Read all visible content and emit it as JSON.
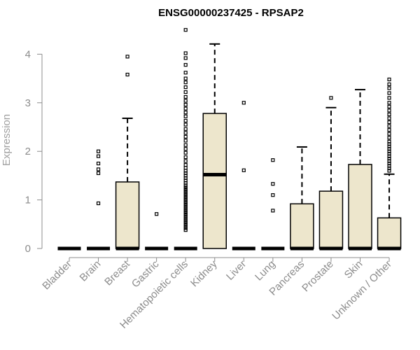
{
  "chart_data": {
    "type": "box",
    "title": "ENSG00000237425 - RPSAP2",
    "xlabel": "",
    "ylabel": "Expression",
    "ylim": [
      0,
      4.6
    ],
    "yticks": [
      "0",
      "1",
      "2",
      "3",
      "4"
    ],
    "box_fill": "#ede6cc",
    "outline_color": "#000000",
    "axis_color": "#8c8c8c",
    "grid": false,
    "categories": [
      "Bladder",
      "Brain",
      "Breast",
      "Gastric",
      "Hematopoietic cells",
      "Kidney",
      "Liver",
      "Lung",
      "Pancreas",
      "Prostate",
      "Skin",
      "Unknown / Other"
    ],
    "boxes": [
      {
        "q1": 0,
        "median": 0,
        "q3": 0,
        "whisker_low": 0,
        "whisker_high": 0,
        "outliers": []
      },
      {
        "q1": 0,
        "median": 0,
        "q3": 0,
        "whisker_low": 0,
        "whisker_high": 0,
        "outliers": [
          0.93,
          1.55,
          1.63,
          1.75,
          1.9,
          2.0
        ]
      },
      {
        "q1": 0,
        "median": 0,
        "q3": 1.37,
        "whisker_low": 0,
        "whisker_high": 2.68,
        "outliers": [
          3.58,
          3.95
        ]
      },
      {
        "q1": 0,
        "median": 0,
        "q3": 0,
        "whisker_low": 0,
        "whisker_high": 0,
        "outliers": [
          0.71
        ]
      },
      {
        "q1": 0,
        "median": 0,
        "q3": 0,
        "whisker_low": 0,
        "whisker_high": 0,
        "outliers": [
          0.38,
          0.42,
          0.46,
          0.5,
          0.54,
          0.58,
          0.62,
          0.66,
          0.7,
          0.74,
          0.78,
          0.82,
          0.86,
          0.9,
          0.94,
          0.98,
          1.02,
          1.06,
          1.1,
          1.14,
          1.18,
          1.22,
          1.26,
          1.3,
          1.35,
          1.4,
          1.45,
          1.5,
          1.55,
          1.6,
          1.66,
          1.72,
          1.8,
          1.88,
          1.97,
          2.05,
          2.13,
          2.22,
          2.3,
          2.38,
          2.46,
          2.55,
          2.63,
          2.72,
          2.8,
          2.88,
          2.96,
          3.04,
          3.12,
          3.22,
          3.32,
          3.42,
          3.5,
          3.62,
          3.78,
          3.92,
          4.02,
          4.5
        ]
      },
      {
        "q1": 0,
        "median": 1.52,
        "q3": 2.78,
        "whisker_low": 0,
        "whisker_high": 4.21,
        "outliers": []
      },
      {
        "q1": 0,
        "median": 0,
        "q3": 0,
        "whisker_low": 0,
        "whisker_high": 0,
        "outliers": [
          1.61,
          3.0
        ]
      },
      {
        "q1": 0,
        "median": 0,
        "q3": 0,
        "whisker_low": 0,
        "whisker_high": 0,
        "outliers": [
          0.78,
          1.1,
          1.33,
          1.82
        ]
      },
      {
        "q1": 0,
        "median": 0,
        "q3": 0.92,
        "whisker_low": 0,
        "whisker_high": 2.09,
        "outliers": []
      },
      {
        "q1": 0,
        "median": 0,
        "q3": 1.18,
        "whisker_low": 0,
        "whisker_high": 2.9,
        "outliers": [
          3.1
        ]
      },
      {
        "q1": 0,
        "median": 0,
        "q3": 1.73,
        "whisker_low": 0,
        "whisker_high": 3.27,
        "outliers": []
      },
      {
        "q1": 0,
        "median": 0,
        "q3": 0.63,
        "whisker_low": 0,
        "whisker_high": 1.53,
        "outliers": [
          1.6,
          1.65,
          1.7,
          1.75,
          1.8,
          1.85,
          1.9,
          1.95,
          2.0,
          2.05,
          2.1,
          2.15,
          2.2,
          2.28,
          2.36,
          2.44,
          2.52,
          2.6,
          2.68,
          2.76,
          2.84,
          2.92,
          3.0,
          3.1,
          3.2,
          3.3,
          3.38,
          3.48
        ]
      }
    ]
  }
}
